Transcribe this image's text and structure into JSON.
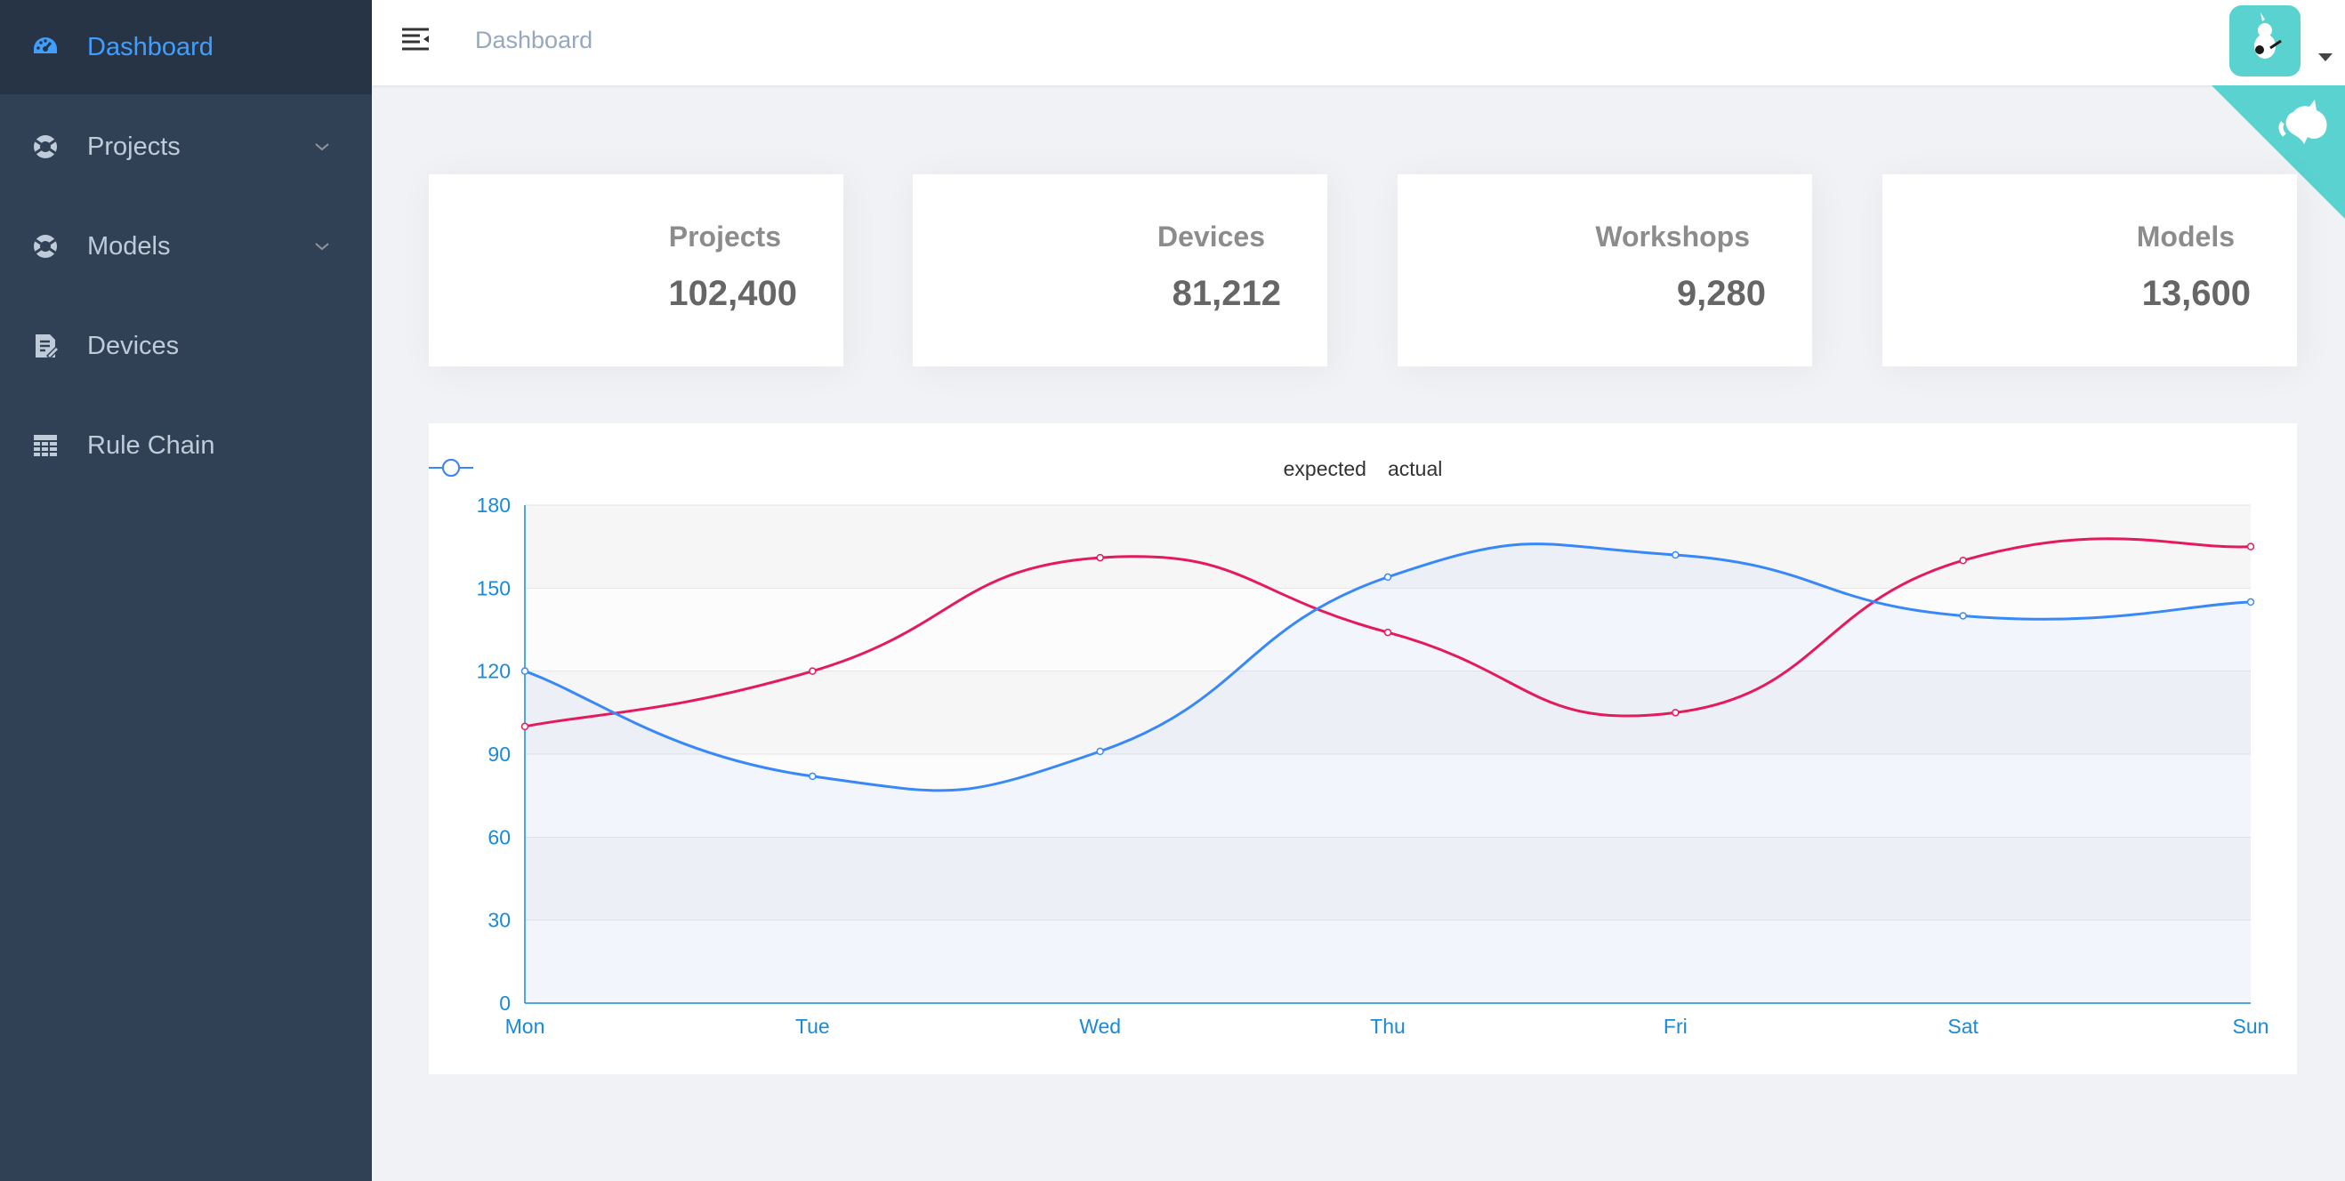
{
  "sidebar": {
    "items": [
      {
        "label": "Dashboard",
        "icon": "dashboard-icon",
        "active": true
      },
      {
        "label": "Projects",
        "icon": "lifebuoy-icon",
        "expandable": true
      },
      {
        "label": "Models",
        "icon": "lifebuoy-icon",
        "expandable": true
      },
      {
        "label": "Devices",
        "icon": "document-edit-icon"
      },
      {
        "label": "Rule Chain",
        "icon": "table-icon"
      }
    ]
  },
  "header": {
    "breadcrumb": "Dashboard"
  },
  "cards": [
    {
      "title": "Projects",
      "value": "102,400"
    },
    {
      "title": "Devices",
      "value": "81,212"
    },
    {
      "title": "Workshops",
      "value": "9,280"
    },
    {
      "title": "Models",
      "value": "13,600"
    }
  ],
  "colors": {
    "sidebar_bg": "#304156",
    "sidebar_active_bg": "#263445",
    "accent": "#409eff",
    "expected": "#e61a5b",
    "actual": "#3888fa",
    "axis": "#1a8ad6",
    "corner": "#5ad2cf"
  },
  "chart_data": {
    "type": "line",
    "categories": [
      "Mon",
      "Tue",
      "Wed",
      "Thu",
      "Fri",
      "Sat",
      "Sun"
    ],
    "series": [
      {
        "name": "expected",
        "values": [
          100,
          120,
          161,
          134,
          105,
          160,
          165
        ]
      },
      {
        "name": "actual",
        "values": [
          120,
          82,
          91,
          154,
          162,
          140,
          145
        ]
      }
    ],
    "ylim": [
      0,
      180
    ],
    "yticks": [
      0,
      30,
      60,
      90,
      120,
      150,
      180
    ],
    "smooth": true,
    "grid": true,
    "legend": "top-center"
  }
}
